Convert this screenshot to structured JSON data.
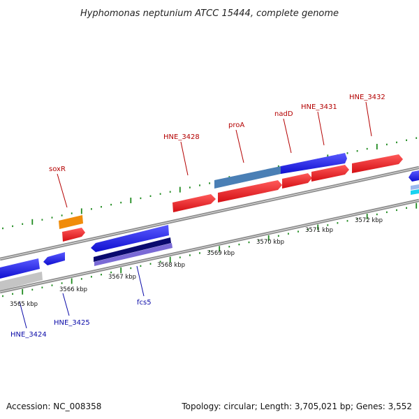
{
  "title": "Hyphomonas neptunium ATCC 15444, complete genome",
  "footer": {
    "accession": "Accession: NC_008358",
    "summary": "Topology: circular; Length: 3,705,021 bp; Genes: 3,552"
  },
  "axis_ticks": [
    {
      "label": "3565 kbp"
    },
    {
      "label": "3566 kbp"
    },
    {
      "label": "3567 kbp"
    },
    {
      "label": "3568 kbp"
    },
    {
      "label": "3569 kbp"
    },
    {
      "label": "3570 kbp"
    },
    {
      "label": "3571 kbp"
    },
    {
      "label": "3572 kbp"
    }
  ],
  "gene_labels": [
    {
      "text": "soxR",
      "strand": "top"
    },
    {
      "text": "HNE_3428",
      "strand": "top"
    },
    {
      "text": "proA",
      "strand": "top"
    },
    {
      "text": "nadD",
      "strand": "top"
    },
    {
      "text": "HNE_3431",
      "strand": "top"
    },
    {
      "text": "HNE_3432",
      "strand": "top"
    },
    {
      "text": "fcs5",
      "strand": "bottom"
    },
    {
      "text": "HNE_3425",
      "strand": "bottom"
    },
    {
      "text": "HNE_3424",
      "strand": "bottom"
    }
  ],
  "colors": {
    "cds_red": "#e8141e",
    "gene_blue": "#1a1ae6",
    "steel_blue": "#4a7fb5",
    "orange": "#f08c0a",
    "navy": "#0a0a6e",
    "purple": "#7a6ad6",
    "grey": "#c4c4c4",
    "backbone": "#8c8c8c",
    "tick_green": "#1e8a1e",
    "cyan": "#18d2f0",
    "label_red": "#b40000",
    "label_blue": "#0a0aa8"
  }
}
